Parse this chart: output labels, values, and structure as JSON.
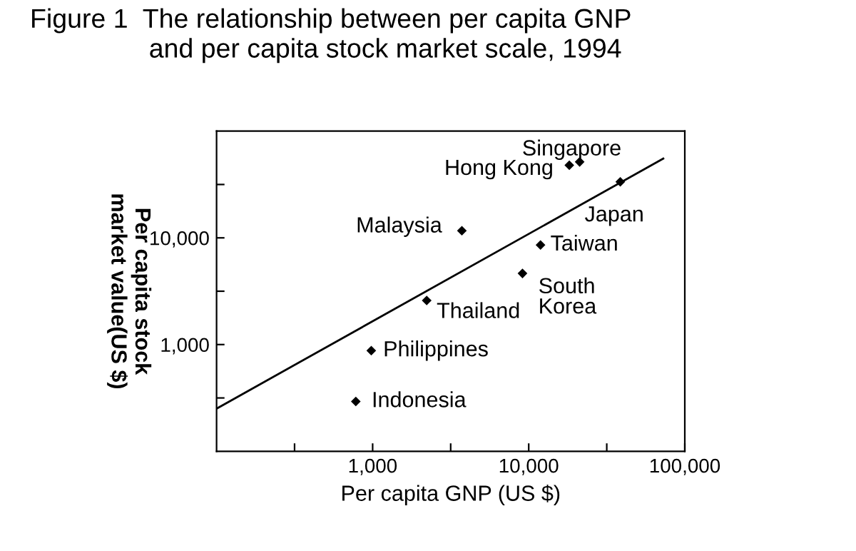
{
  "chart_data": {
    "type": "scatter",
    "title": "Figure 1  The relationship between per capita GNP\n                and per capita stock market scale, 1994",
    "xlabel": "Per capita GNP (US $)",
    "ylabel": "Per capita stock\nmarket value(US $)",
    "log": "xy",
    "xlim": [
      100,
      100000
    ],
    "ylim": [
      100,
      100000
    ],
    "xticks": [
      {
        "value": 316,
        "label": null
      },
      {
        "value": 1000,
        "label": "1,000"
      },
      {
        "value": 3162,
        "label": null
      },
      {
        "value": 10000,
        "label": "10,000"
      },
      {
        "value": 31623,
        "label": null
      },
      {
        "value": 100000,
        "label": "100,000"
      }
    ],
    "yticks": [
      {
        "value": 316,
        "label": null
      },
      {
        "value": 1000,
        "label": "1,000"
      },
      {
        "value": 3162,
        "label": null
      },
      {
        "value": 10000,
        "label": "10,000"
      },
      {
        "value": 31623,
        "label": null
      }
    ],
    "grid": false,
    "legend": false,
    "marker": "diamond",
    "series": [
      {
        "color": "#000000",
        "x": [
          21200,
          18200,
          38600,
          3730,
          11900,
          9120,
          2220,
          980,
          780
        ],
        "values": [
          51500,
          47900,
          33500,
          11660,
          8580,
          4640,
          2590,
          877,
          293
        ]
      },
      {
        "type": "line",
        "marker": "none",
        "color": "#000000",
        "x": [
          100,
          72800
        ],
        "values": [
          251,
          55300
        ]
      }
    ],
    "annotations": [
      {
        "text": "Singapore",
        "x": 21200,
        "y": 51500
      },
      {
        "text": "Hong Kong",
        "x": 18200,
        "y": 47900
      },
      {
        "text": "Japan",
        "x": 38600,
        "y": 33500
      },
      {
        "text": "Malaysia",
        "x": 3730,
        "y": 11660
      },
      {
        "text": "Taiwan",
        "x": 11900,
        "y": 8580
      },
      {
        "text": "South\nKorea",
        "x": 9120,
        "y": 4640
      },
      {
        "text": "Thailand",
        "x": 2220,
        "y": 2590
      },
      {
        "text": "Philippines",
        "x": 980,
        "y": 877
      },
      {
        "text": "Indonesia",
        "x": 780,
        "y": 293
      }
    ]
  }
}
